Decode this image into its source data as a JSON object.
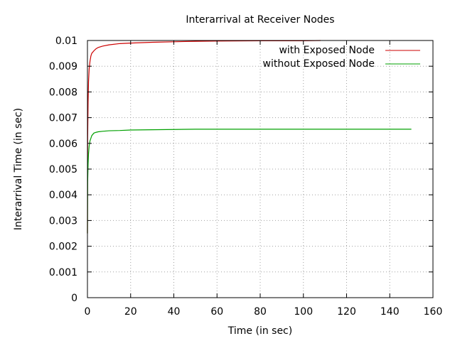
{
  "chart_data": {
    "type": "line",
    "title": "Interarrival at Receiver Nodes",
    "xlabel": "Time (in sec)",
    "ylabel": "Interarrival Time (in sec)",
    "xlim": [
      0,
      160
    ],
    "ylim": [
      0,
      0.01
    ],
    "x_ticks": [
      "0",
      "20",
      "40",
      "60",
      "80",
      "100",
      "120",
      "140",
      "160"
    ],
    "y_ticks": [
      "0",
      "0.001",
      "0.002",
      "0.003",
      "0.004",
      "0.005",
      "0.006",
      "0.007",
      "0.008",
      "0.009",
      "0.01"
    ],
    "grid": true,
    "legend_position": "top-right",
    "series": [
      {
        "name": "with Exposed Node",
        "color": "#cc0000",
        "x": [
          0.0,
          0.1,
          0.3,
          0.5,
          0.8,
          1.2,
          1.6,
          2.0,
          3.0,
          4.0,
          5.0,
          7.0,
          10.0,
          15.0,
          20.0,
          30.0,
          40.0,
          50.0,
          60.0,
          80.0,
          100.0,
          108.0
        ],
        "y": [
          0.0025,
          0.0062,
          0.0076,
          0.0084,
          0.0089,
          0.0092,
          0.0094,
          0.0095,
          0.0096,
          0.00968,
          0.00973,
          0.00978,
          0.00983,
          0.00988,
          0.0099,
          0.00993,
          0.00995,
          0.00997,
          0.00998,
          0.00999,
          0.00999,
          0.01
        ]
      },
      {
        "name": "without Exposed Node",
        "color": "#00a000",
        "x": [
          0.0,
          0.1,
          0.3,
          0.5,
          0.8,
          1.2,
          1.6,
          2.0,
          3.0,
          4.0,
          5.0,
          7.0,
          10.0,
          15.0,
          20.0,
          30.0,
          40.0,
          50.0,
          60.0,
          80.0,
          100.0,
          120.0,
          140.0,
          150.0
        ],
        "y": [
          0.0025,
          0.0045,
          0.0052,
          0.0056,
          0.0059,
          0.0061,
          0.0062,
          0.0063,
          0.0064,
          0.00643,
          0.00645,
          0.00647,
          0.00649,
          0.0065,
          0.00652,
          0.00653,
          0.00654,
          0.00655,
          0.00655,
          0.00655,
          0.00655,
          0.00655,
          0.00655,
          0.00655
        ]
      }
    ]
  }
}
